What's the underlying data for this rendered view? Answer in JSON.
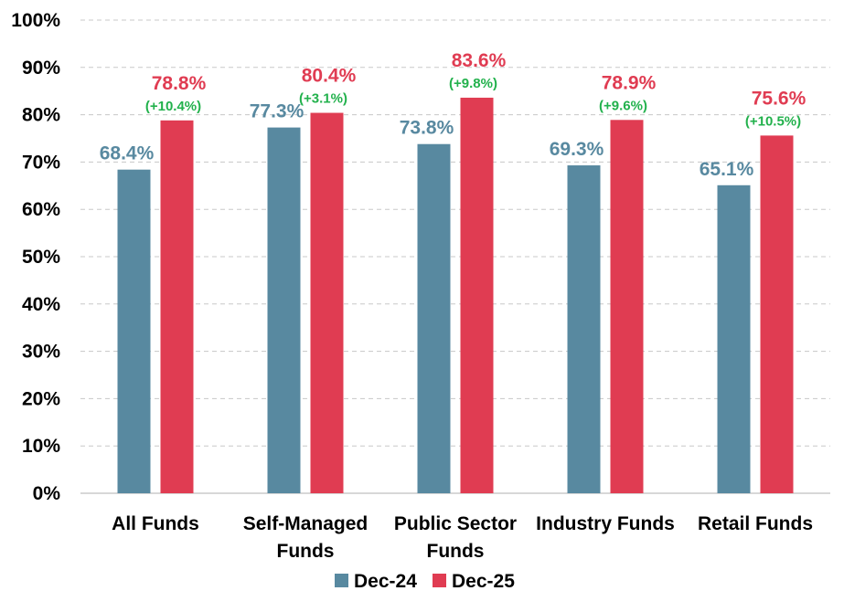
{
  "chart_data": {
    "type": "bar",
    "title": "",
    "xlabel": "",
    "ylabel": "",
    "ylim": [
      0,
      100
    ],
    "yticks": [
      "0%",
      "10%",
      "20%",
      "30%",
      "40%",
      "50%",
      "60%",
      "70%",
      "80%",
      "90%",
      "100%"
    ],
    "grid": true,
    "legend_position": "bottom",
    "categories": [
      [
        "All Funds"
      ],
      [
        "Self-Managed",
        "Funds"
      ],
      [
        "Public Sector",
        "Funds"
      ],
      [
        "Industry Funds"
      ],
      [
        "Retail Funds"
      ]
    ],
    "series": [
      {
        "name": "Dec-24",
        "color": "#5889a0",
        "values": [
          68.4,
          77.3,
          73.8,
          69.3,
          65.1
        ],
        "labels": [
          "68.4%",
          "77.3%",
          "73.8%",
          "69.3%",
          "65.1%"
        ]
      },
      {
        "name": "Dec-25",
        "color": "#e03c52",
        "values": [
          78.8,
          80.4,
          83.6,
          78.9,
          75.6
        ],
        "labels": [
          "78.8%",
          "80.4%",
          "83.6%",
          "78.9%",
          "75.6%"
        ],
        "change_labels": [
          "(+10.4%)",
          "(+3.1%)",
          "(+9.8%)",
          "(+9.6%)",
          "(+10.5%)"
        ],
        "change_color": "#22b14c"
      }
    ]
  }
}
